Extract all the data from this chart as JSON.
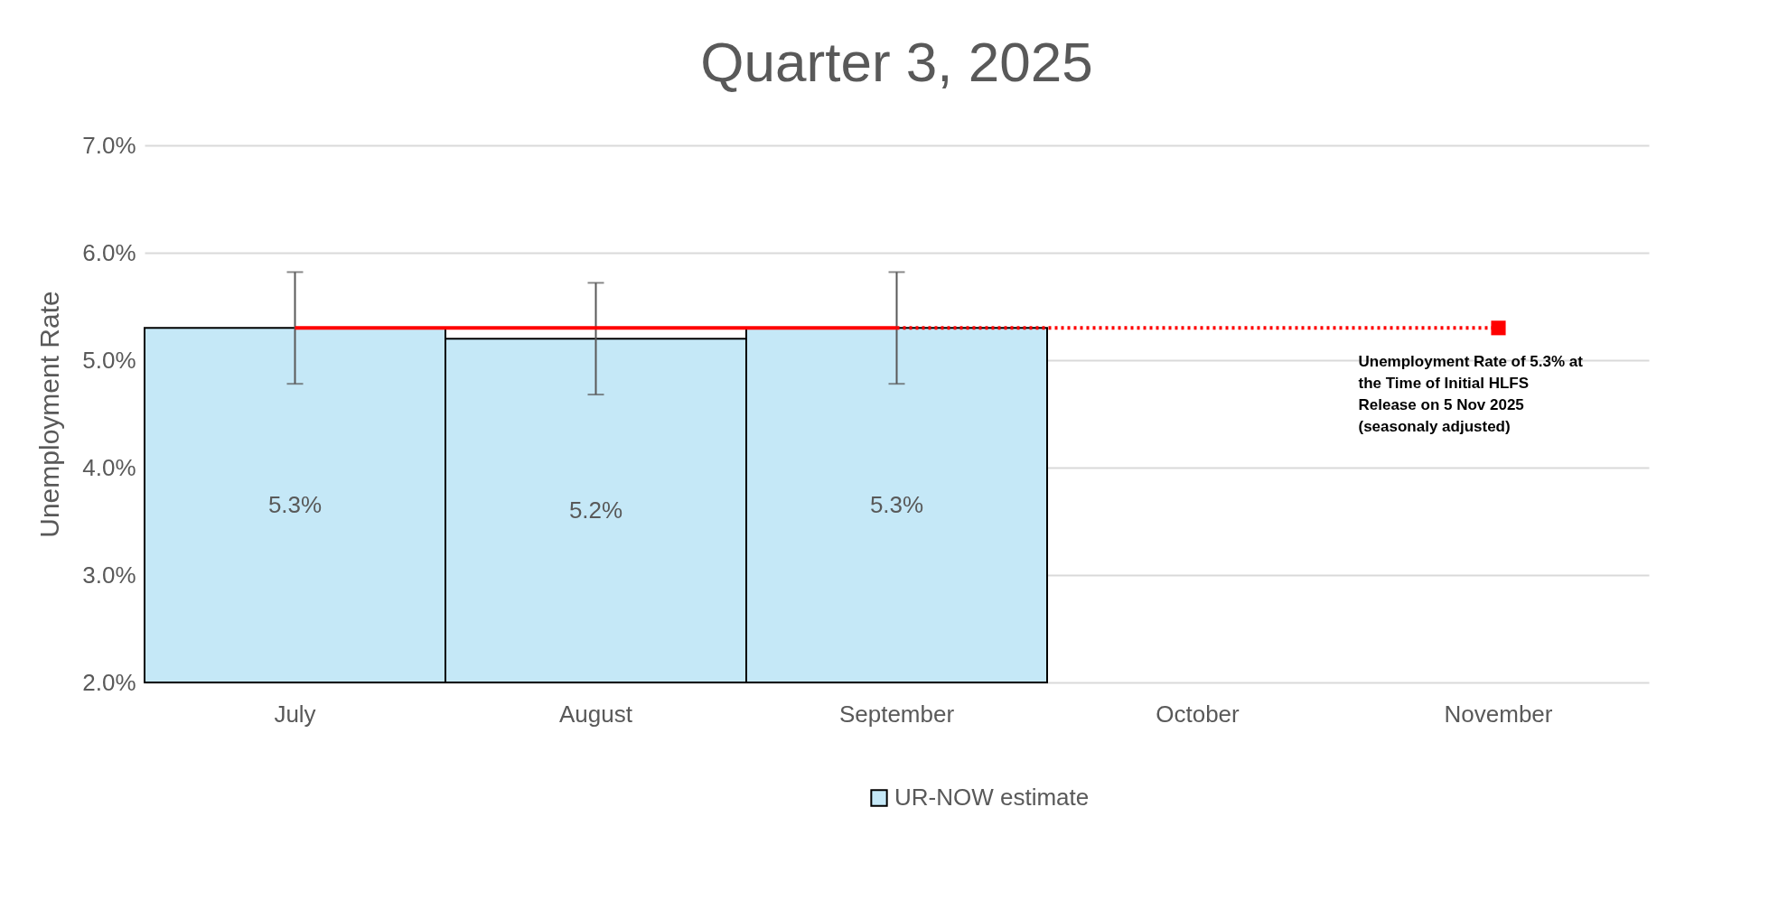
{
  "chart_data": {
    "type": "bar",
    "title": "Quarter 3, 2025",
    "ylabel": "Unemployment Rate",
    "categories": [
      "July",
      "August",
      "September",
      "October",
      "November"
    ],
    "series": [
      {
        "name": "UR-NOW estimate",
        "color": "#c5e8f7",
        "values": [
          5.3,
          5.2,
          5.3,
          null,
          null
        ],
        "errors": [
          [
            4.78,
            5.82
          ],
          [
            4.68,
            5.72
          ],
          [
            4.78,
            5.82
          ],
          null,
          null
        ],
        "value_labels": [
          "5.3%",
          "5.2%",
          "5.3%",
          null,
          null
        ]
      },
      {
        "type": "line",
        "color": "#ff0000",
        "line_style": "solid",
        "values": [
          5.3,
          5.3,
          5.3,
          null,
          null
        ]
      },
      {
        "type": "line",
        "color": "#ff0000",
        "line_style": "dotted",
        "values": [
          null,
          null,
          5.3,
          5.3,
          5.3
        ]
      },
      {
        "type": "scatter",
        "color": "#ff0000",
        "marker": "square",
        "values": [
          null,
          null,
          null,
          null,
          5.3
        ]
      }
    ],
    "ylim": [
      2,
      7
    ],
    "yticks": [
      {
        "value": 2,
        "label": "2.0%"
      },
      {
        "value": 3,
        "label": "3.0%"
      },
      {
        "value": 4,
        "label": "4.0%"
      },
      {
        "value": 5,
        "label": "5.0%"
      },
      {
        "value": 6,
        "label": "6.0%"
      },
      {
        "value": 7,
        "label": "7.0%"
      }
    ],
    "grid": "y",
    "legend": "bottom",
    "annotations": [
      {
        "text": "Unemployment Rate of 5.3% at the Time of Initial HLFS Release on 5 Nov 2025 (seasonaly adjusted)",
        "x": "November",
        "y": 5.3
      }
    ]
  }
}
